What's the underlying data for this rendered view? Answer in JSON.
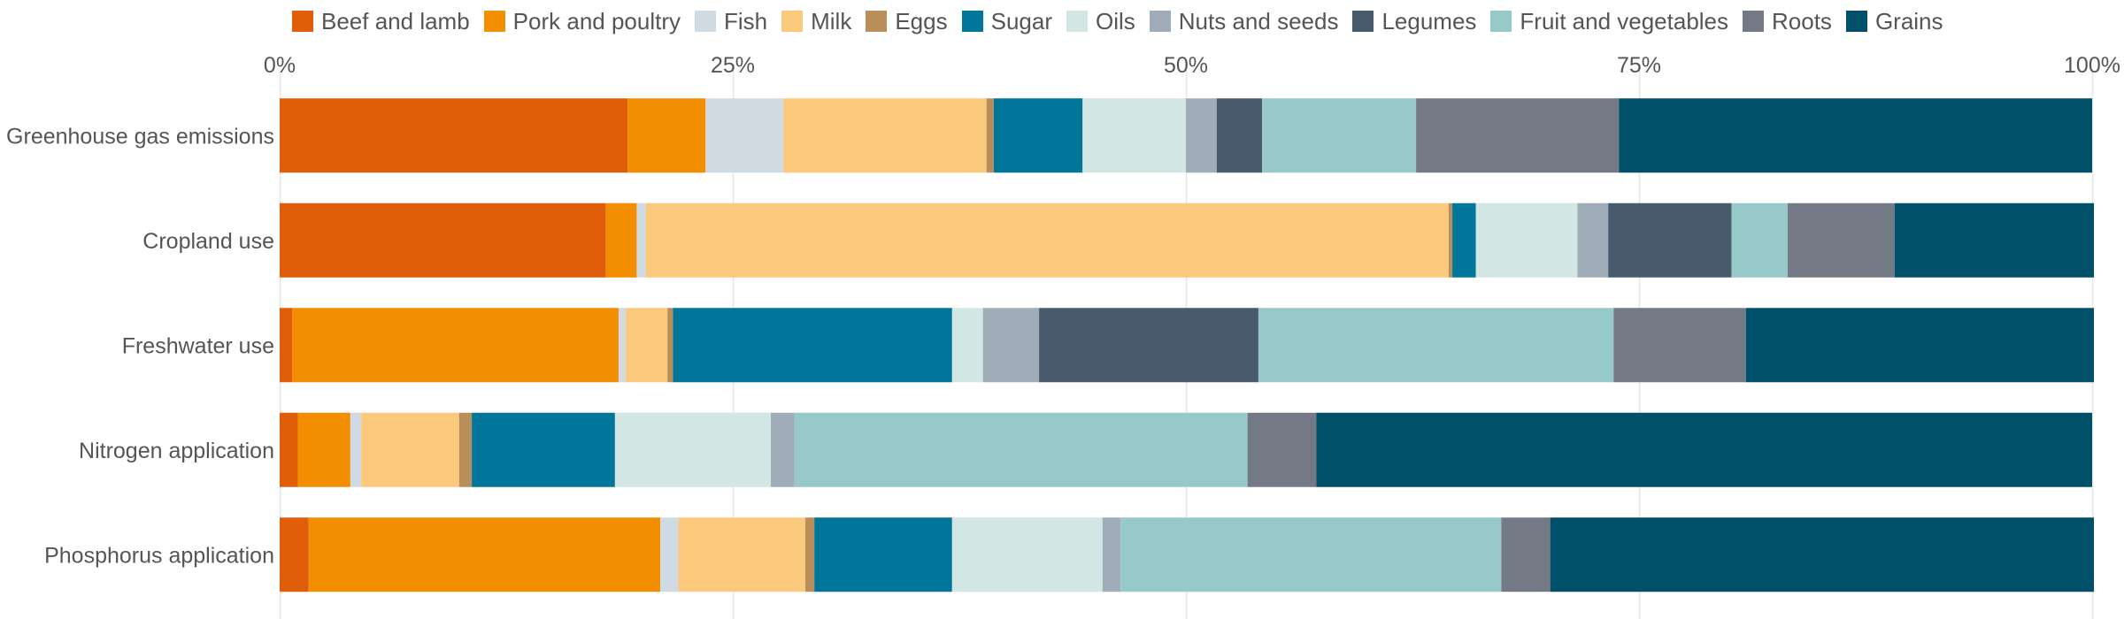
{
  "chart_data": {
    "type": "bar",
    "orientation": "horizontal",
    "stacked": true,
    "normalized": true,
    "categories": [
      "Greenhouse gas emissions",
      "Cropland use",
      "Freshwater use",
      "Nitrogen application",
      "Phosphorus application"
    ],
    "xlim": [
      0,
      100
    ],
    "x_ticks": [
      "0%",
      "25%",
      "50%",
      "75%",
      "100%"
    ],
    "x_tick_values": [
      0,
      25,
      50,
      75,
      100
    ],
    "x_axis_position": "top",
    "grid": "vertical",
    "legend_position": "top",
    "series": [
      {
        "name": "Beef and lamb",
        "color": "#e05d0a",
        "values": [
          19.2,
          18.0,
          0.7,
          1.0,
          1.6
        ]
      },
      {
        "name": "Pork and poultry",
        "color": "#f28e00",
        "values": [
          4.3,
          1.7,
          18.0,
          2.9,
          19.4
        ]
      },
      {
        "name": "Fish",
        "color": "#d0dae3",
        "values": [
          4.3,
          0.5,
          0.4,
          0.6,
          1.0
        ]
      },
      {
        "name": "Milk",
        "color": "#fbc97c",
        "values": [
          11.2,
          44.3,
          2.3,
          5.4,
          7.0
        ]
      },
      {
        "name": "Eggs",
        "color": "#b88f5a",
        "values": [
          0.4,
          0.2,
          0.3,
          0.7,
          0.5
        ]
      },
      {
        "name": "Sugar",
        "color": "#00779a",
        "values": [
          4.9,
          1.3,
          15.4,
          7.9,
          7.6
        ]
      },
      {
        "name": "Oils",
        "color": "#d2e6e3",
        "values": [
          5.7,
          5.6,
          1.7,
          8.6,
          8.3
        ]
      },
      {
        "name": "Nuts and seeds",
        "color": "#a0adb8",
        "values": [
          1.7,
          1.7,
          3.1,
          1.3,
          1.0
        ]
      },
      {
        "name": "Legumes",
        "color": "#475b6c",
        "values": [
          2.5,
          6.8,
          12.1,
          0.0,
          0.0
        ]
      },
      {
        "name": "Fruit and vegetables",
        "color": "#96c9c8",
        "values": [
          8.5,
          3.1,
          19.6,
          25.0,
          21.0
        ]
      },
      {
        "name": "Roots",
        "color": "#737a85",
        "values": [
          11.2,
          5.9,
          7.3,
          3.8,
          2.7
        ]
      },
      {
        "name": "Grains",
        "color": "#005069",
        "values": [
          26.1,
          11.0,
          19.2,
          42.8,
          30.0
        ]
      }
    ]
  }
}
